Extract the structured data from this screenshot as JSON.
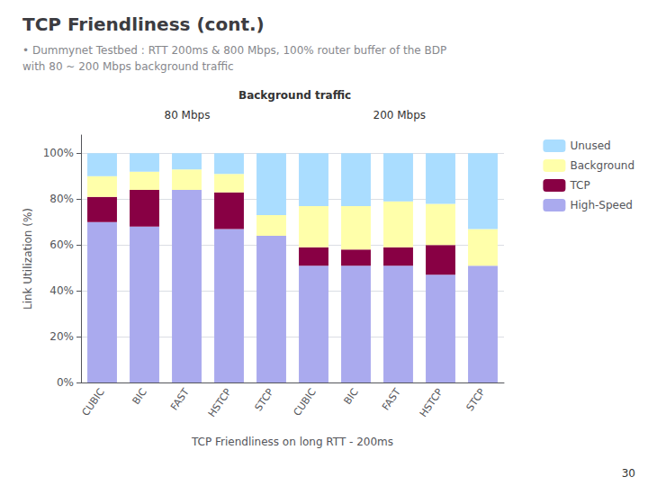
{
  "chart_data": {
    "type": "bar",
    "title": "TCP Friendliness (cont.)",
    "subtitle": [
      "• Dummynet Testbed : RTT 200ms & 800 Mbps, 100% router buffer of the BDP",
      "with 80 ~ 200 Mbps background traffic"
    ],
    "annotations": [
      "Background traffic",
      "80 Mbps",
      "200 Mbps",
      "30"
    ],
    "xlabel": "TCP Friendliness on long RTT - 200ms",
    "ylabel": "Link Utilization (%)",
    "categories": [
      "CUBIC",
      "BIC",
      "FAST",
      "HSTCP",
      "STCP",
      "CUBIC",
      "BIC",
      "FAST",
      "HSTCP",
      "STCP"
    ],
    "stacked": true,
    "series": [
      {
        "name": "High-Speed",
        "color": "#aaaaee",
        "values": [
          70,
          68,
          84,
          67,
          64,
          51,
          51,
          51,
          47,
          51
        ]
      },
      {
        "name": "TCP",
        "color": "#880044",
        "values": [
          11,
          16,
          0,
          16,
          0,
          8,
          7,
          8,
          13,
          0
        ]
      },
      {
        "name": "Background",
        "color": "#ffffaa",
        "values": [
          9,
          8,
          9,
          8,
          9,
          18,
          19,
          20,
          18,
          16
        ]
      },
      {
        "name": "Unused",
        "color": "#aaddff",
        "values": [
          10,
          8,
          7,
          9,
          27,
          23,
          23,
          21,
          22,
          33
        ]
      }
    ],
    "ylim": [
      0,
      108
    ],
    "yticks": [
      {
        "value": 0,
        "label": "0%"
      },
      {
        "value": 20,
        "label": "20%"
      },
      {
        "value": 40,
        "label": "40%"
      },
      {
        "value": 60,
        "label": "60%"
      },
      {
        "value": 80,
        "label": "80%"
      },
      {
        "value": 100,
        "label": "100%"
      }
    ],
    "grid": true,
    "legend": "right"
  }
}
